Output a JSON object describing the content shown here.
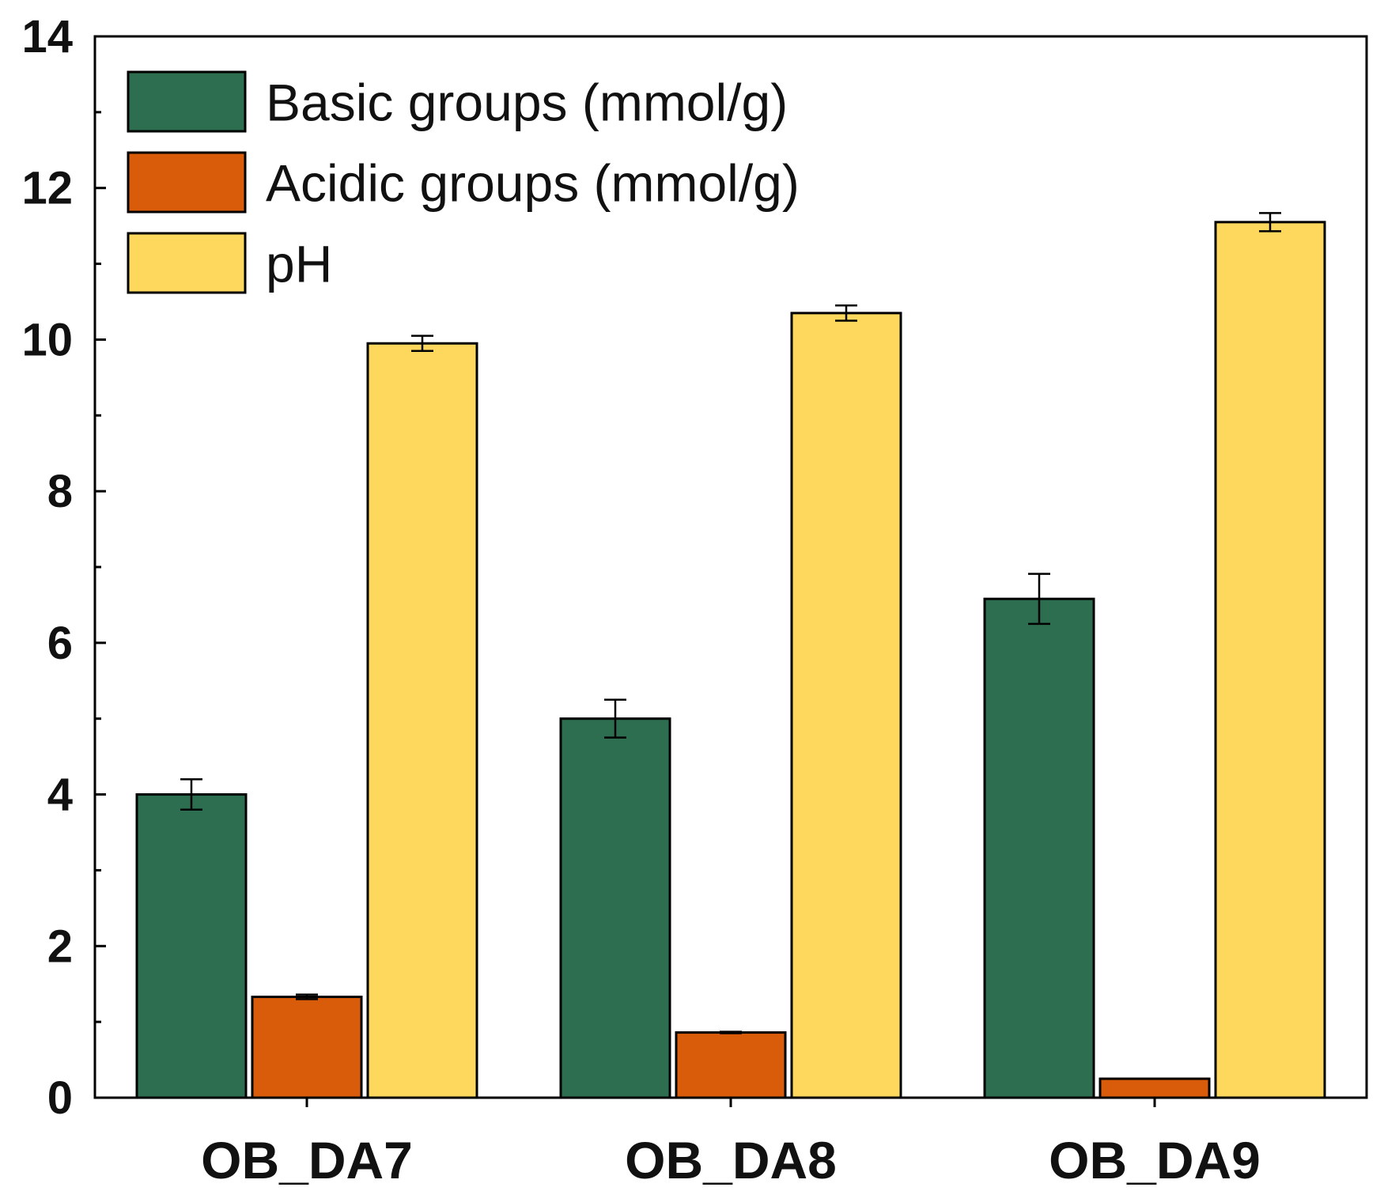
{
  "chart_data": {
    "type": "bar",
    "title": "",
    "xlabel": "",
    "ylabel": "",
    "ylim": [
      0,
      14
    ],
    "yticks": [
      0,
      2,
      4,
      6,
      8,
      10,
      12,
      14
    ],
    "yticks_minor": [
      1,
      3,
      5,
      7,
      9,
      11,
      13
    ],
    "categories": [
      "OB_DA7",
      "OB_DA8",
      "OB_DA9"
    ],
    "legend_position": "top-left",
    "series": [
      {
        "name": "Basic groups (mmol/g)",
        "color": "#2e6e50",
        "values": [
          4.0,
          5.0,
          6.58
        ],
        "errors": [
          0.2,
          0.25,
          0.33
        ]
      },
      {
        "name": "Acidic groups (mmol/g)",
        "color": "#d85c0a",
        "values": [
          1.33,
          0.86,
          0.25
        ],
        "errors": [
          0.03,
          0.01,
          0.0
        ]
      },
      {
        "name": "pH",
        "color": "#fdd85c",
        "values": [
          9.95,
          10.35,
          11.55
        ],
        "errors": [
          0.1,
          0.1,
          0.12
        ]
      }
    ]
  }
}
